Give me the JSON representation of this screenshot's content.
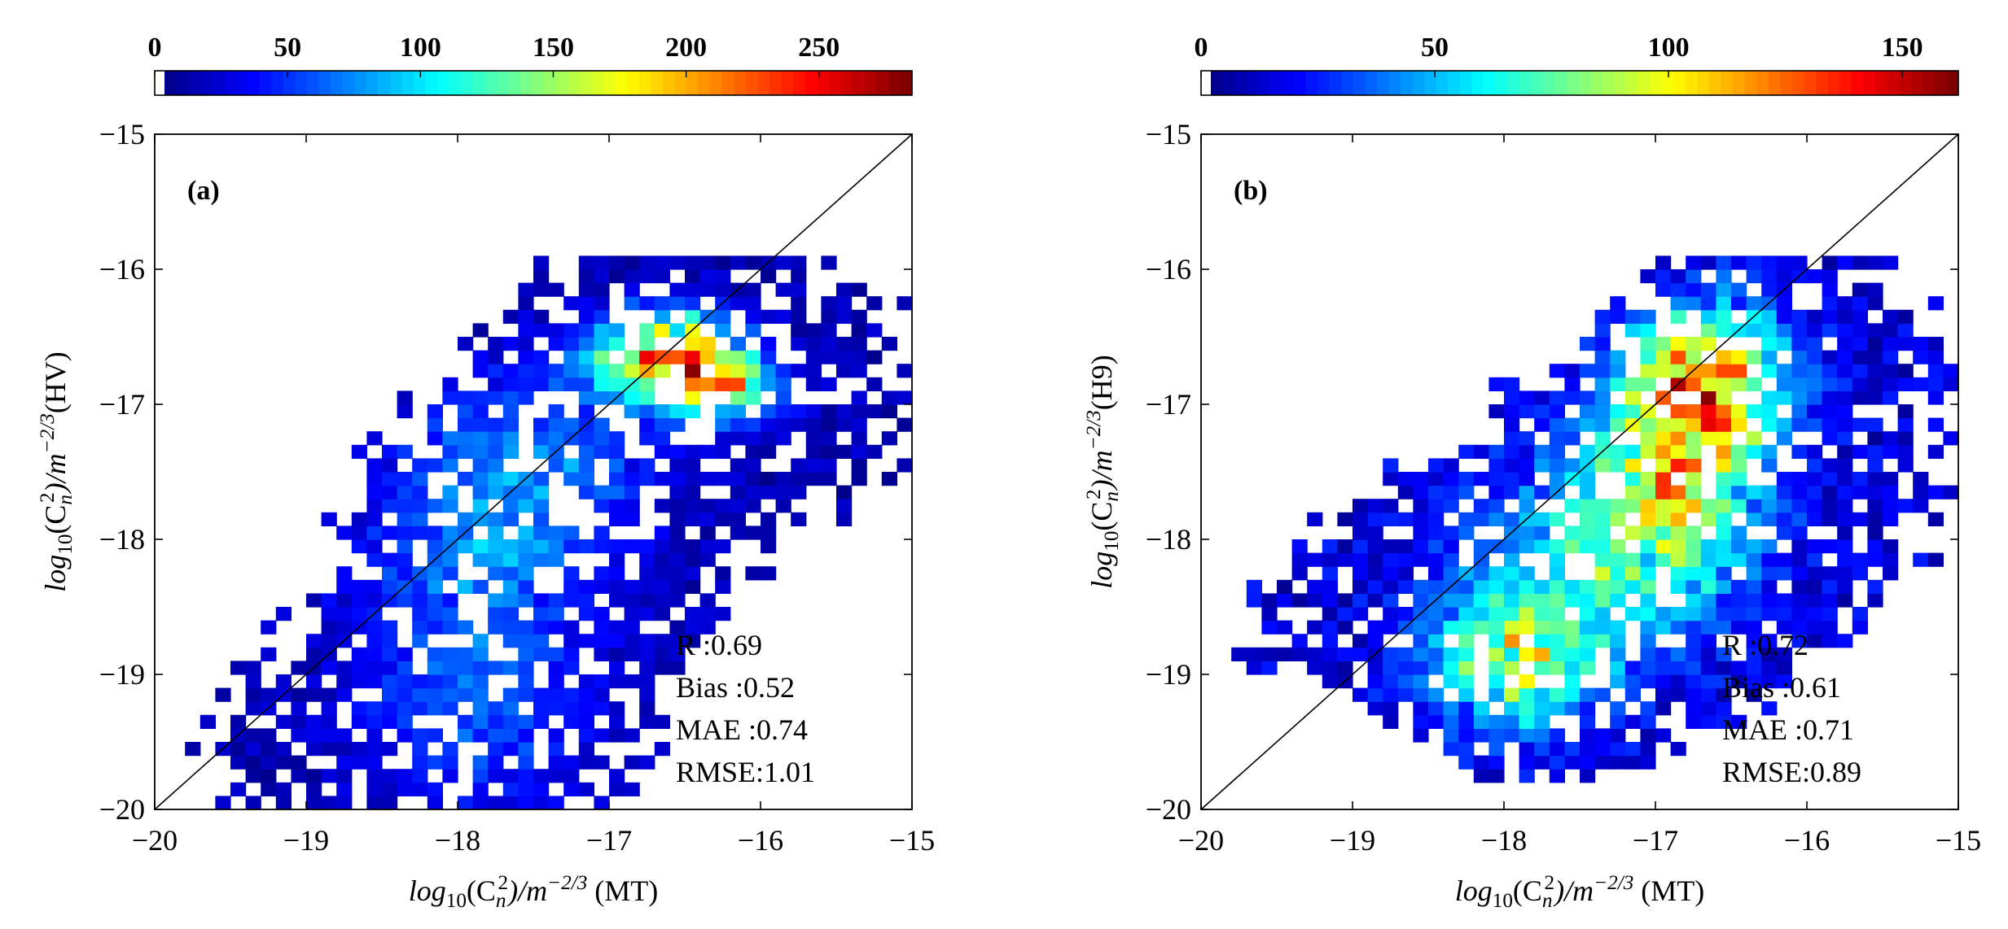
{
  "figure": {
    "description_free": true
  },
  "chart_data": [
    {
      "type": "heatmap",
      "panel_label": "(a)",
      "xlabel": {
        "base": "log",
        "sub": "10",
        "mid": "(C",
        "csub": "n",
        "csup": "2",
        "tail": ")/m",
        "exp": "−2/3",
        "suffix": " (MT)"
      },
      "ylabel": {
        "base": "log",
        "sub": "10",
        "mid": "(C",
        "csub": "n",
        "csup": "2",
        "tail": ")/m",
        "exp": "−2/3",
        "suffix": "(HV)"
      },
      "xlim": [
        -20,
        -15
      ],
      "ylim": [
        -20,
        -15
      ],
      "xticks": [
        -20,
        -19,
        -18,
        -17,
        -16,
        -15
      ],
      "yticks": [
        -20,
        -19,
        -18,
        -17,
        -16,
        -15
      ],
      "xtick_labels": [
        "−20",
        "−19",
        "−18",
        "−17",
        "−16",
        "−15"
      ],
      "ytick_labels": [
        "−20",
        "−19",
        "−18",
        "−17",
        "−16",
        "−15"
      ],
      "colorbar": {
        "min": 0,
        "max": 285,
        "ticks": [
          0,
          50,
          100,
          150,
          200,
          250
        ],
        "tick_labels": [
          "0",
          "50",
          "100",
          "150",
          "200",
          "250"
        ],
        "colormap": "jet"
      },
      "bin_size": 0.1,
      "reference_line": "y = x",
      "stats": [
        "R :0.69",
        "Bias :0.52",
        "MAE :0.74",
        "RMSE:1.01"
      ],
      "clusters": [
        {
          "cx": -16.6,
          "cy": -16.65,
          "sx": 0.32,
          "sy": 0.22,
          "peak": 230
        },
        {
          "cx": -17.9,
          "cy": -18.2,
          "sx": 0.55,
          "sy": 0.7,
          "peak": 55
        },
        {
          "cx": -17.4,
          "cy": -17.4,
          "sx": 0.5,
          "sy": 0.5,
          "peak": 45
        },
        {
          "cx": -17.9,
          "cy": -19.4,
          "sx": 0.5,
          "sy": 0.45,
          "peak": 40
        },
        {
          "cx": -16.2,
          "cy": -16.9,
          "sx": 0.25,
          "sy": 0.15,
          "peak": 140
        }
      ],
      "region": {
        "ybins": [
          -20.0,
          -19.5,
          -19.0,
          -18.5,
          -18.0,
          -17.5,
          -17.0,
          -16.5,
          -16.0
        ],
        "xmin": [
          -19.4,
          -19.5,
          -19.3,
          -19.0,
          -18.7,
          -18.6,
          -18.2,
          -17.8,
          -17.3
        ],
        "xmax": [
          -17.0,
          -16.8,
          -16.6,
          -16.2,
          -15.9,
          -15.1,
          -15.05,
          -15.05,
          -15.6
        ]
      },
      "fill_density": 0.74,
      "seed": 7
    },
    {
      "type": "heatmap",
      "panel_label": "(b)",
      "xlabel": {
        "base": "log",
        "sub": "10",
        "mid": "(C",
        "csub": "n",
        "csup": "2",
        "tail": ")/m",
        "exp": "−2/3",
        "suffix": " (MT)"
      },
      "ylabel": {
        "base": "log",
        "sub": "10",
        "mid": "(C",
        "csub": "n",
        "csup": "2",
        "tail": ")/m",
        "exp": "−2/3",
        "suffix": "(H9)"
      },
      "xlim": [
        -20,
        -15
      ],
      "ylim": [
        -20,
        -15
      ],
      "xticks": [
        -20,
        -19,
        -18,
        -17,
        -16,
        -15
      ],
      "yticks": [
        -20,
        -19,
        -18,
        -17,
        -16,
        -15
      ],
      "xtick_labels": [
        "−20",
        "−19",
        "−18",
        "−17",
        "−16",
        "−15"
      ],
      "ytick_labels": [
        "−20",
        "−19",
        "−18",
        "−17",
        "−16",
        "−15"
      ],
      "colorbar": {
        "min": 0,
        "max": 162,
        "ticks": [
          0,
          50,
          100,
          150
        ],
        "tick_labels": [
          "0",
          "50",
          "100",
          "150"
        ],
        "colormap": "jet"
      },
      "bin_size": 0.1,
      "reference_line": "y = x",
      "stats": [
        "R :0.72",
        "Bias :0.61",
        "MAE :0.71",
        "RMSE:0.89"
      ],
      "clusters": [
        {
          "cx": -16.65,
          "cy": -16.8,
          "sx": 0.35,
          "sy": 0.35,
          "peak": 115
        },
        {
          "cx": -16.9,
          "cy": -17.6,
          "sx": 0.4,
          "sy": 0.5,
          "peak": 85
        },
        {
          "cx": -17.9,
          "cy": -18.9,
          "sx": 0.4,
          "sy": 0.35,
          "peak": 70
        },
        {
          "cx": -17.5,
          "cy": -18.2,
          "sx": 0.6,
          "sy": 0.5,
          "peak": 40
        }
      ],
      "region": {
        "ybins": [
          -19.7,
          -19.3,
          -19.0,
          -18.5,
          -18.0,
          -17.5,
          -17.0,
          -16.5,
          -16.0
        ],
        "xmin": [
          -18.3,
          -18.7,
          -19.5,
          -19.6,
          -19.3,
          -18.6,
          -18.0,
          -17.4,
          -16.9
        ],
        "xmax": [
          -17.4,
          -16.4,
          -16.0,
          -15.6,
          -15.3,
          -15.1,
          -15.05,
          -15.05,
          -15.6
        ]
      },
      "fill_density": 0.78,
      "seed": 13
    }
  ]
}
